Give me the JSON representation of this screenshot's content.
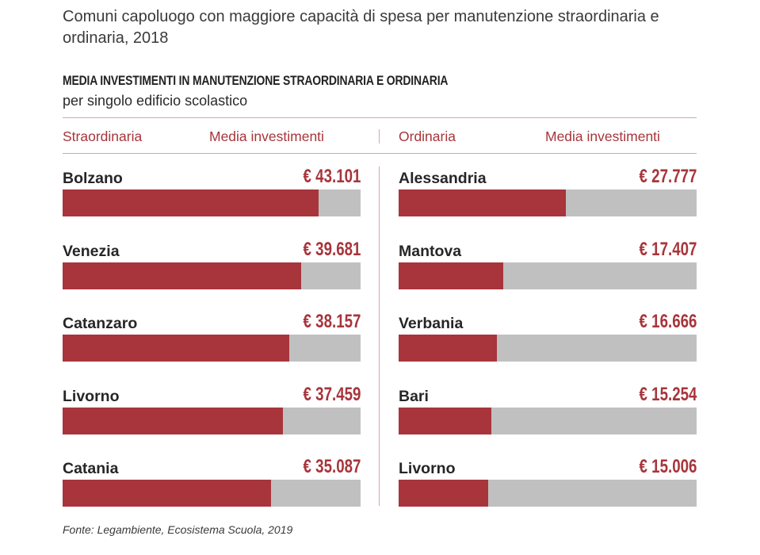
{
  "page_title": "Comuni capoluogo con maggiore capacità di spesa per manutenzione straordinaria e ordinaria, 2018",
  "source": "Fonte: Legambiente, Ecosistema Scuola, 2019",
  "colors": {
    "accent": "#a7353b",
    "track": "#c0c0c0",
    "rule": "#d9a6a6"
  },
  "chart_data": {
    "type": "bar",
    "orientation": "horizontal",
    "title": "MEDIA INVESTIMENTI IN MANUTENZIONE STRAORDINARIA E ORDINARIA",
    "subtitle": "per singolo edificio scolastico",
    "panels": [
      {
        "name": "Straordinaria",
        "value_header": "Media investimenti",
        "max": 43101,
        "categories": [
          "Bolzano",
          "Venezia",
          "Catanzaro",
          "Livorno",
          "Catania"
        ],
        "values": [
          43101,
          39681,
          38157,
          37459,
          35087
        ],
        "labels": [
          "€ 43.101",
          "€ 39.681",
          "€ 38.157",
          "€ 37.459",
          "€ 35.087"
        ],
        "fill_fractions": [
          0.86,
          0.8,
          0.76,
          0.74,
          0.7
        ]
      },
      {
        "name": "Ordinaria",
        "value_header": "Media investimenti",
        "max": 27777,
        "categories": [
          "Alessandria",
          "Mantova",
          "Verbania",
          "Bari",
          "Livorno"
        ],
        "values": [
          27777,
          17407,
          16666,
          15254,
          15006
        ],
        "labels": [
          "€ 27.777",
          "€ 17.407",
          "€ 16.666",
          "€ 15.254",
          "€ 15.006"
        ],
        "fill_fractions": [
          0.56,
          0.35,
          0.33,
          0.31,
          0.3
        ]
      }
    ]
  }
}
